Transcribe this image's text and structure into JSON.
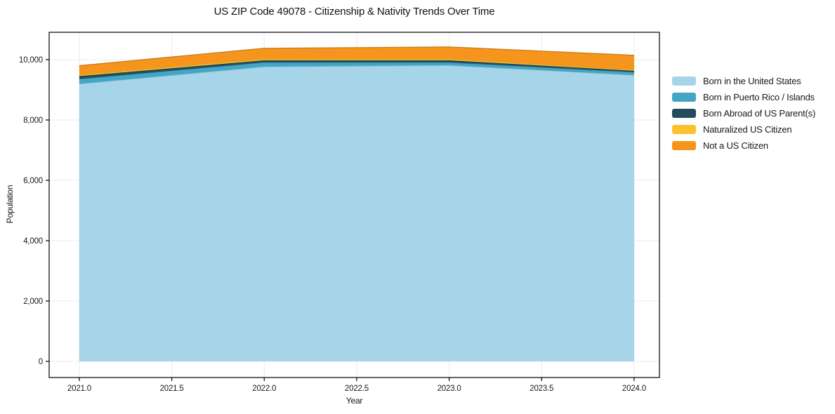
{
  "title": "US ZIP Code 49078 - Citizenship & Nativity Trends Over Time",
  "chart_data": {
    "type": "area",
    "stacked": true,
    "title": "US ZIP Code 49078 - Citizenship & Nativity Trends Over Time",
    "xlabel": "Year",
    "ylabel": "Population",
    "x": [
      2021,
      2022,
      2023,
      2024
    ],
    "series": [
      {
        "name": "Born in the United States",
        "color": "#a6d4e9",
        "values": [
          9200,
          9770,
          9815,
          9490
        ]
      },
      {
        "name": "Born in Puerto Rico / Islands",
        "color": "#42a6c6",
        "values": [
          160,
          140,
          95,
          95
        ]
      },
      {
        "name": "Born Abroad of US Parent(s)",
        "color": "#254c5d",
        "values": [
          95,
          70,
          70,
          45
        ]
      },
      {
        "name": "Naturalized US Citizen",
        "color": "#fcc22d",
        "values": [
          45,
          45,
          45,
          35
        ]
      },
      {
        "name": "Not a US Citizen",
        "color": "#f6951e",
        "values": [
          300,
          350,
          395,
          480
        ]
      }
    ],
    "stack_totals": [
      9800,
      10375,
      10420,
      10145
    ],
    "xticks": [
      2021.0,
      2021.5,
      2022.0,
      2022.5,
      2023.0,
      2023.5,
      2024.0
    ],
    "xtick_labels": [
      "2021.0",
      "2021.5",
      "2022.0",
      "2022.5",
      "2023.0",
      "2023.5",
      "2024.0"
    ],
    "yticks": [
      0,
      2000,
      4000,
      6000,
      8000,
      10000
    ],
    "ytick_labels": [
      "0",
      "2,000",
      "4,000",
      "6,000",
      "8,000",
      "10,000"
    ],
    "xlim": [
      2020.837,
      2024.137
    ],
    "ylim": [
      -535,
      10907
    ],
    "grid": true,
    "legend_position": "right"
  },
  "colors": {
    "background": "#ffffff",
    "gridline": "#ebebeb",
    "axis": "#000000",
    "tick_text": "#1a1a1a"
  }
}
